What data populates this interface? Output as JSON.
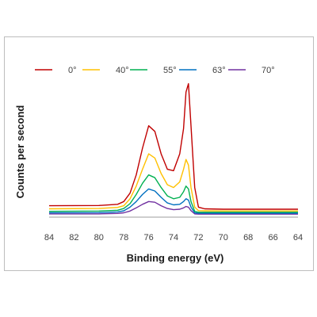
{
  "chart_data": {
    "type": "line",
    "xlabel": "Binding energy (eV)",
    "ylabel": "Counts per second",
    "xlim": [
      84,
      64
    ],
    "x_reversed": true,
    "xticks": [
      "84",
      "82",
      "80",
      "78",
      "76",
      "74",
      "72",
      "70",
      "68",
      "66",
      "64"
    ],
    "ylim": [
      0,
      1
    ],
    "y_tick_labels_shown": false,
    "grid": false,
    "legend_position": "top",
    "x": [
      84,
      80,
      78.5,
      78,
      77.5,
      77,
      76.5,
      76,
      75.5,
      75,
      74.5,
      74,
      73.5,
      73.2,
      73,
      72.8,
      72.6,
      72.3,
      72,
      71.5,
      70,
      68,
      64
    ],
    "series": [
      {
        "name": "0°",
        "color": "#c00000",
        "values": [
          0.07,
          0.072,
          0.08,
          0.1,
          0.16,
          0.29,
          0.48,
          0.64,
          0.6,
          0.44,
          0.33,
          0.32,
          0.44,
          0.62,
          0.88,
          0.94,
          0.64,
          0.2,
          0.06,
          0.048,
          0.045,
          0.045,
          0.045
        ]
      },
      {
        "name": "40°",
        "color": "#ffc000",
        "values": [
          0.048,
          0.05,
          0.058,
          0.07,
          0.12,
          0.21,
          0.33,
          0.44,
          0.41,
          0.3,
          0.22,
          0.2,
          0.24,
          0.33,
          0.4,
          0.36,
          0.2,
          0.06,
          0.035,
          0.034,
          0.033,
          0.033,
          0.033
        ]
      },
      {
        "name": "55°",
        "color": "#00b050",
        "values": [
          0.03,
          0.032,
          0.038,
          0.05,
          0.085,
          0.15,
          0.23,
          0.29,
          0.27,
          0.2,
          0.14,
          0.12,
          0.13,
          0.17,
          0.21,
          0.19,
          0.1,
          0.03,
          0.024,
          0.024,
          0.024,
          0.024,
          0.024
        ]
      },
      {
        "name": "63°",
        "color": "#0070c0",
        "values": [
          0.02,
          0.021,
          0.026,
          0.034,
          0.06,
          0.1,
          0.15,
          0.19,
          0.175,
          0.13,
          0.09,
          0.076,
          0.08,
          0.1,
          0.12,
          0.11,
          0.06,
          0.02,
          0.017,
          0.017,
          0.017,
          0.017,
          0.017
        ]
      },
      {
        "name": "70°",
        "color": "#7030a0",
        "values": [
          0.012,
          0.012,
          0.015,
          0.02,
          0.032,
          0.055,
          0.08,
          0.1,
          0.095,
          0.07,
          0.05,
          0.042,
          0.045,
          0.055,
          0.065,
          0.06,
          0.035,
          0.012,
          0.01,
          0.01,
          0.01,
          0.01,
          0.01
        ]
      }
    ]
  }
}
